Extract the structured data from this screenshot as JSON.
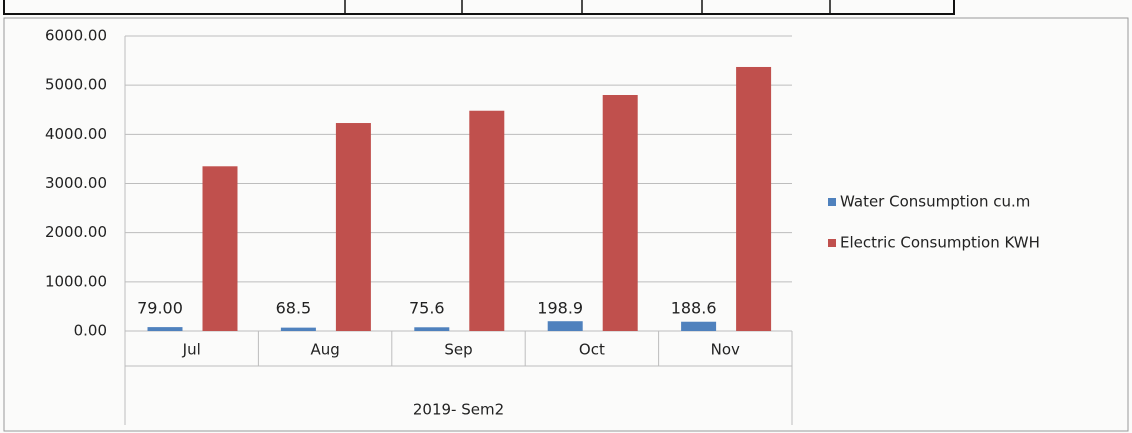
{
  "chart_data": {
    "type": "bar",
    "categories": [
      "Jul",
      "Aug",
      "Sep",
      "Oct",
      "Nov"
    ],
    "group_label": "2019- Sem2",
    "series": [
      {
        "name": "Water Consumption cu.m",
        "color": "#4f81bd",
        "values": [
          79,
          68.5,
          75.6,
          198.9,
          188.6
        ],
        "value_labels": [
          "79.00",
          "68.5",
          "75.6",
          "198.9",
          "188.6"
        ]
      },
      {
        "name": "Electric Consumption KWH",
        "color": "#c0504d",
        "values": [
          3350,
          4230,
          4480,
          4800,
          5370
        ]
      }
    ],
    "ylim": [
      0,
      6000
    ],
    "yticks": [
      {
        "value": 0,
        "label": "0.00"
      },
      {
        "value": 1000,
        "label": "1000.00"
      },
      {
        "value": 2000,
        "label": "2000.00"
      },
      {
        "value": 3000,
        "label": "3000.00"
      },
      {
        "value": 4000,
        "label": "4000.00"
      },
      {
        "value": 5000,
        "label": "5000.00"
      },
      {
        "value": 6000,
        "label": "6000.00"
      }
    ],
    "grid": true,
    "legend": "right"
  }
}
